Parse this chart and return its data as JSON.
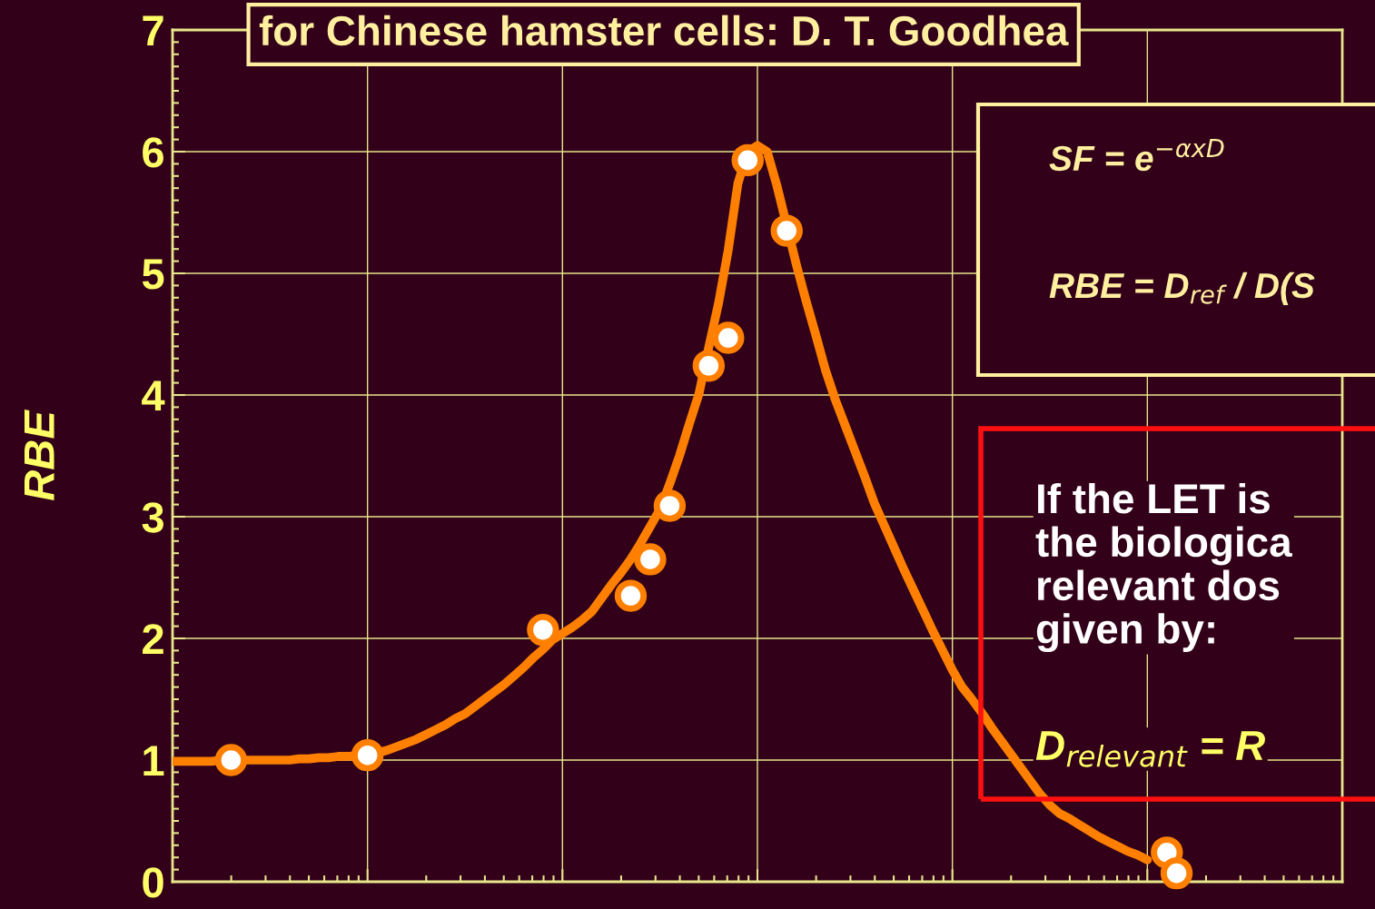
{
  "chart_data": {
    "type": "line",
    "title": "for Chinese hamster cells: D. T. Goodhea",
    "ylabel": "RBE",
    "grid": true,
    "tick_labels": "y",
    "categories": [
      null,
      null,
      null,
      null,
      null,
      null,
      null,
      null,
      null,
      null,
      null,
      null,
      null,
      null,
      null,
      null,
      null,
      null,
      null,
      null,
      null,
      null,
      null,
      null,
      null,
      null,
      null,
      null,
      null,
      null,
      null,
      null,
      null,
      null,
      null,
      null,
      null,
      null,
      null,
      null,
      null,
      null,
      null,
      null,
      null,
      null,
      null,
      null,
      null,
      null,
      null,
      null,
      null,
      null,
      null,
      null,
      null,
      null,
      null,
      null,
      null,
      null,
      null,
      null,
      null,
      null,
      null,
      null,
      null,
      null,
      null,
      null,
      null,
      null,
      null,
      null,
      null,
      null,
      null,
      null,
      null,
      null,
      null,
      null,
      null,
      null,
      null,
      null,
      null,
      null,
      null,
      null,
      null,
      null,
      null,
      null,
      null,
      null,
      null,
      null,
      null,
      null,
      null,
      null,
      null,
      null,
      null,
      null,
      null,
      null,
      null,
      null,
      null,
      null,
      null,
      null,
      null,
      null,
      null,
      null,
      null
    ],
    "ylim": [
      0,
      7
    ],
    "yticks": [
      0,
      1,
      2,
      3,
      4,
      5,
      6,
      7
    ],
    "annotations": [
      "SF = e$^{−αxD}$",
      "RBE = D$_{ref}$ / D(S",
      "If the LET is\nthe biologica\nrelevant dos\ngiven by:",
      "D$_{relevant}$ = R"
    ],
    "series": [
      {
        "color": "#ff8000",
        "line_style": "solid",
        "values": [
          0.99,
          0.99,
          0.99,
          0.99,
          0.99,
          1.0,
          1.0,
          1.0,
          1.0,
          1.0,
          1.0,
          1.0,
          1.0,
          1.01,
          1.01,
          1.02,
          1.02,
          1.03,
          1.03,
          1.04,
          1.04,
          1.06,
          1.08,
          1.11,
          1.14,
          1.17,
          1.21,
          1.25,
          1.29,
          1.34,
          1.38,
          1.44,
          1.5,
          1.56,
          1.62,
          1.69,
          1.76,
          1.84,
          1.91,
          1.99,
          2.04,
          2.09,
          2.15,
          2.22,
          2.33,
          2.44,
          2.54,
          2.65,
          2.78,
          2.92,
          3.06,
          3.27,
          3.5,
          3.76,
          4.01,
          4.39,
          4.75,
          5.19,
          5.74,
          6.0,
          6.05,
          6.0,
          5.72,
          null,
          5.07,
          4.77,
          4.49,
          4.2,
          3.96,
          3.75,
          3.54,
          3.33,
          3.11,
          2.93,
          2.75,
          2.57,
          2.4,
          2.23,
          2.06,
          1.9,
          1.74,
          1.6,
          1.5,
          1.39,
          1.27,
          1.16,
          1.05,
          0.94,
          0.83,
          0.72,
          0.63,
          0.56,
          0.52,
          0.47,
          0.42,
          0.37,
          0.33,
          0.29,
          0.25,
          0.22,
          0.18,
          null,
          null,
          null,
          null,
          null,
          null,
          null,
          null,
          null,
          null,
          null,
          null,
          null,
          null,
          null,
          null,
          null,
          null,
          null,
          null
        ]
      },
      {
        "type": "scatter",
        "color": "#ff8000",
        "marker": "circle",
        "values": [
          null,
          null,
          null,
          null,
          null,
          null,
          1.0,
          null,
          null,
          null,
          null,
          null,
          null,
          null,
          null,
          null,
          null,
          null,
          null,
          null,
          1.04,
          null,
          null,
          null,
          null,
          null,
          null,
          null,
          null,
          null,
          null,
          null,
          null,
          null,
          null,
          null,
          null,
          null,
          2.07,
          null,
          null,
          null,
          null,
          null,
          null,
          null,
          null,
          2.35,
          null,
          2.65,
          null,
          3.09,
          null,
          null,
          null,
          4.24,
          null,
          4.47,
          null,
          5.93,
          null,
          null,
          null,
          5.35,
          null,
          null,
          null,
          null,
          null,
          null,
          null,
          null,
          null,
          null,
          null,
          null,
          null,
          null,
          null,
          null,
          null,
          null,
          null,
          null,
          null,
          null,
          null,
          null,
          null,
          null,
          null,
          null,
          null,
          null,
          null,
          null,
          null,
          null,
          null,
          null,
          null,
          null,
          0.24,
          0.07,
          null,
          null,
          null,
          null,
          null,
          null,
          null,
          null,
          null,
          null,
          null,
          null,
          null,
          null,
          null,
          null,
          null
        ]
      }
    ]
  }
}
